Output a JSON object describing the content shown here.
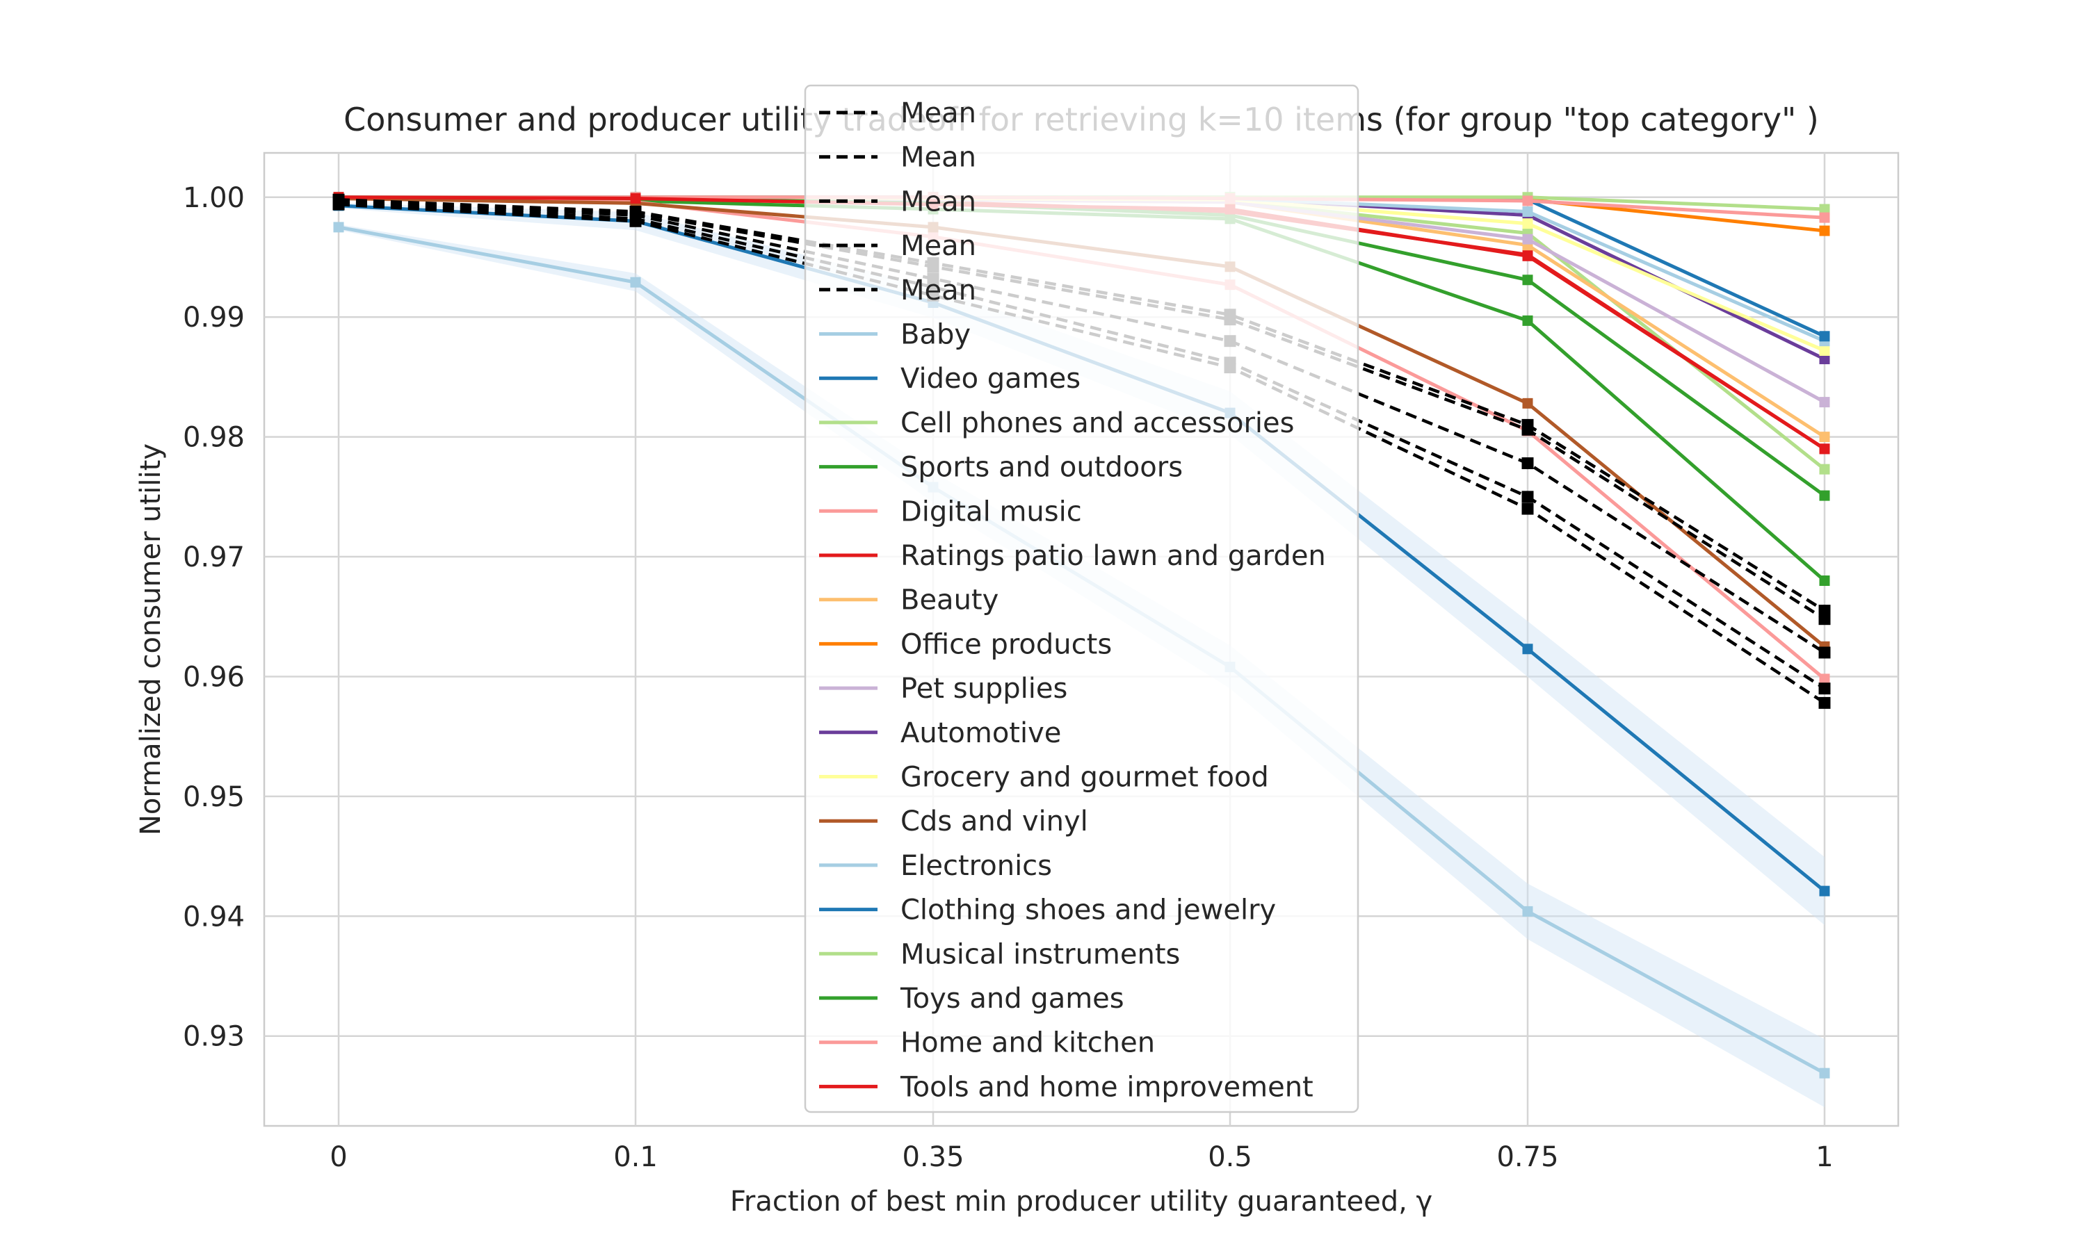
{
  "chart_data": {
    "type": "line",
    "title": "Consumer and producer utility tradeoff for retrieving k=10 items (for group \"top category\" )",
    "xlabel": "Fraction of best min producer utility guaranteed, γ",
    "ylabel": "Normalized consumer utility",
    "x": [
      "0",
      "0.1",
      "0.35",
      "0.5",
      "0.75",
      "1"
    ],
    "ylim": [
      0.9225,
      1.0037
    ],
    "y_ticks": [
      "0.93",
      "0.94",
      "0.95",
      "0.96",
      "0.97",
      "0.98",
      "0.99",
      "1.00"
    ],
    "y_tick_values": [
      0.93,
      0.94,
      0.95,
      0.96,
      0.97,
      0.98,
      0.99,
      1.0
    ],
    "grid": true,
    "legend_position": "top-center",
    "series": [
      {
        "name": "Mean",
        "color": "#000000",
        "dash": true,
        "values": [
          0.9998,
          0.9988,
          0.9945,
          0.9902,
          0.981,
          0.9655
        ]
      },
      {
        "name": "Mean",
        "color": "#000000",
        "dash": true,
        "values": [
          0.9996,
          0.9985,
          0.9932,
          0.988,
          0.9778,
          0.962
        ]
      },
      {
        "name": "Mean",
        "color": "#000000",
        "dash": true,
        "values": [
          0.9995,
          0.9982,
          0.9925,
          0.9862,
          0.975,
          0.959
        ]
      },
      {
        "name": "Mean",
        "color": "#000000",
        "dash": true,
        "values": [
          0.9994,
          0.998,
          0.9918,
          0.9858,
          0.974,
          0.9578
        ]
      },
      {
        "name": "Mean",
        "color": "#000000",
        "dash": true,
        "values": [
          0.9997,
          0.9987,
          0.9942,
          0.9898,
          0.9806,
          0.9648
        ]
      },
      {
        "name": "Baby",
        "color": "#a6cee3",
        "band": true,
        "values": [
          0.9975,
          0.9929,
          0.9758,
          0.9608,
          0.9404,
          0.9269
        ]
      },
      {
        "name": "Video games",
        "color": "#1f78b4",
        "band": true,
        "values": [
          0.9993,
          0.998,
          0.9912,
          0.982,
          0.9623,
          0.9421
        ]
      },
      {
        "name": "Cell phones and accessories",
        "color": "#b2df8a",
        "values": [
          0.9999,
          0.9999,
          0.9998,
          0.9997,
          0.997,
          0.9773
        ]
      },
      {
        "name": "Sports and outdoors",
        "color": "#33a02c",
        "values": [
          0.9999,
          0.9997,
          0.999,
          0.9982,
          0.9897,
          0.968
        ]
      },
      {
        "name": "Digital music",
        "color": "#fb9a99",
        "values": [
          0.9999,
          0.9996,
          0.9967,
          0.9927,
          0.9805,
          0.9598
        ]
      },
      {
        "name": "Ratings patio lawn and garden",
        "color": "#e31a1c",
        "values": [
          1.0,
          0.9999,
          0.9996,
          0.9988,
          0.9952,
          0.979
        ]
      },
      {
        "name": "Beauty",
        "color": "#fdbf6f",
        "values": [
          1.0,
          0.9999,
          0.9998,
          0.9996,
          0.996,
          0.98
        ]
      },
      {
        "name": "Office products",
        "color": "#ff7f00",
        "values": [
          1.0,
          1.0,
          1.0,
          0.9999,
          0.9998,
          0.9972
        ]
      },
      {
        "name": "Pet supplies",
        "color": "#cab2d6",
        "values": [
          1.0,
          0.9999,
          0.9998,
          0.9996,
          0.9965,
          0.9829
        ]
      },
      {
        "name": "Automotive",
        "color": "#6a3d9a",
        "values": [
          1.0,
          1.0,
          0.9999,
          0.9999,
          0.9985,
          0.9865
        ]
      },
      {
        "name": "Grocery and gourmet food",
        "color": "#ffff99",
        "values": [
          1.0,
          1.0,
          0.9999,
          0.9998,
          0.9978,
          0.9872
        ]
      },
      {
        "name": "Cds and vinyl",
        "color": "#b15928",
        "values": [
          0.9999,
          0.9995,
          0.9975,
          0.9942,
          0.9828,
          0.9625
        ]
      },
      {
        "name": "Electronics",
        "color": "#a6cee3",
        "values": [
          1.0,
          1.0,
          1.0,
          0.9999,
          0.9988,
          0.988
        ]
      },
      {
        "name": "Clothing shoes and jewelry",
        "color": "#1f78b4",
        "values": [
          1.0,
          1.0,
          1.0,
          1.0,
          0.9998,
          0.9884
        ]
      },
      {
        "name": "Musical instruments",
        "color": "#b2df8a",
        "values": [
          1.0,
          1.0,
          1.0,
          1.0,
          1.0,
          0.999
        ]
      },
      {
        "name": "Toys and games",
        "color": "#33a02c",
        "values": [
          1.0,
          0.9999,
          0.9995,
          0.9985,
          0.9931,
          0.9751
        ]
      },
      {
        "name": "Home and kitchen",
        "color": "#fb9a99",
        "values": [
          1.0,
          1.0,
          1.0,
          0.9999,
          0.9997,
          0.9983
        ]
      },
      {
        "name": "Tools and home improvement",
        "color": "#e31a1c",
        "values": [
          1.0,
          0.9999,
          0.9994,
          0.999,
          0.9951,
          0.979
        ]
      }
    ]
  }
}
